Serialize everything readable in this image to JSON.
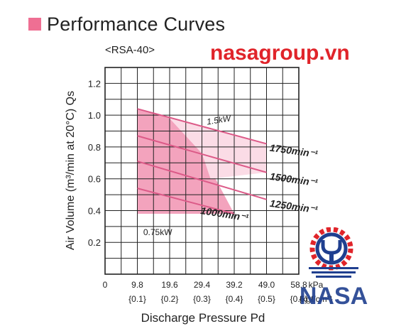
{
  "heading": {
    "text": "Performance Curves"
  },
  "subtitle": "<RSA-40>",
  "watermark": {
    "top_text": "nasagroup.vn",
    "logo_text": "NASA"
  },
  "colors": {
    "accent": "#ef6f93",
    "watermark_red": "#e0242a",
    "logo_blue": "#1f3f8f",
    "curve": "#dc5a88",
    "fill_light": "#fbdce6",
    "fill_dark": "#f3a3bd",
    "grid": "#222222"
  },
  "chart_data": {
    "type": "line",
    "xlabel": "Discharge Pressure Pd",
    "ylabel": "Air Volume (m³/min at 20°C) Qs",
    "xlim": [
      0,
      58.8
    ],
    "ylim": [
      0,
      1.3
    ],
    "x_grid_step": 4.9,
    "y_grid_step": 0.1,
    "x_ticks": [
      "0",
      "9.8",
      "19.6",
      "29.4",
      "39.2",
      "49.0",
      "58.8"
    ],
    "x_tick_values": [
      0,
      9.8,
      19.6,
      29.4,
      39.2,
      49.0,
      58.8
    ],
    "x_unit": "kPa",
    "x_ticks_secondary": [
      "{0.1}",
      "{0.2}",
      "{0.3}",
      "{0.4}",
      "{0.5}",
      "{0.6}"
    ],
    "x_secondary_values": [
      9.8,
      19.6,
      29.4,
      39.2,
      49.0,
      58.8
    ],
    "x_unit_secondary": "{kgf/cm²}",
    "y_ticks": [
      "0.2",
      "0.4",
      "0.6",
      "0.8",
      "1.0",
      "1.2"
    ],
    "y_tick_values": [
      0.2,
      0.4,
      0.6,
      0.8,
      1.0,
      1.2
    ],
    "series": [
      {
        "name": "1750min⁻¹",
        "x": [
          9.8,
          49.0
        ],
        "y": [
          1.04,
          0.82
        ]
      },
      {
        "name": "1500min⁻¹",
        "x": [
          9.8,
          49.0
        ],
        "y": [
          0.87,
          0.64
        ]
      },
      {
        "name": "1250min⁻¹",
        "x": [
          9.8,
          49.0
        ],
        "y": [
          0.71,
          0.47
        ]
      },
      {
        "name": "1000min⁻¹",
        "x": [
          9.8,
          39.2
        ],
        "y": [
          0.54,
          0.38
        ]
      }
    ],
    "power_regions": [
      {
        "label": "0.75kW",
        "shade": "dark",
        "polygon": [
          [
            9.8,
            1.04
          ],
          [
            19.6,
            0.98
          ],
          [
            29.4,
            0.76
          ],
          [
            39.2,
            0.38
          ],
          [
            9.8,
            0.38
          ]
        ]
      },
      {
        "label": "1.5kW",
        "shade": "light",
        "polygon": [
          [
            19.6,
            0.98
          ],
          [
            49.0,
            0.82
          ],
          [
            49.0,
            0.64
          ],
          [
            32.0,
            0.6
          ],
          [
            29.4,
            0.76
          ]
        ]
      }
    ]
  }
}
